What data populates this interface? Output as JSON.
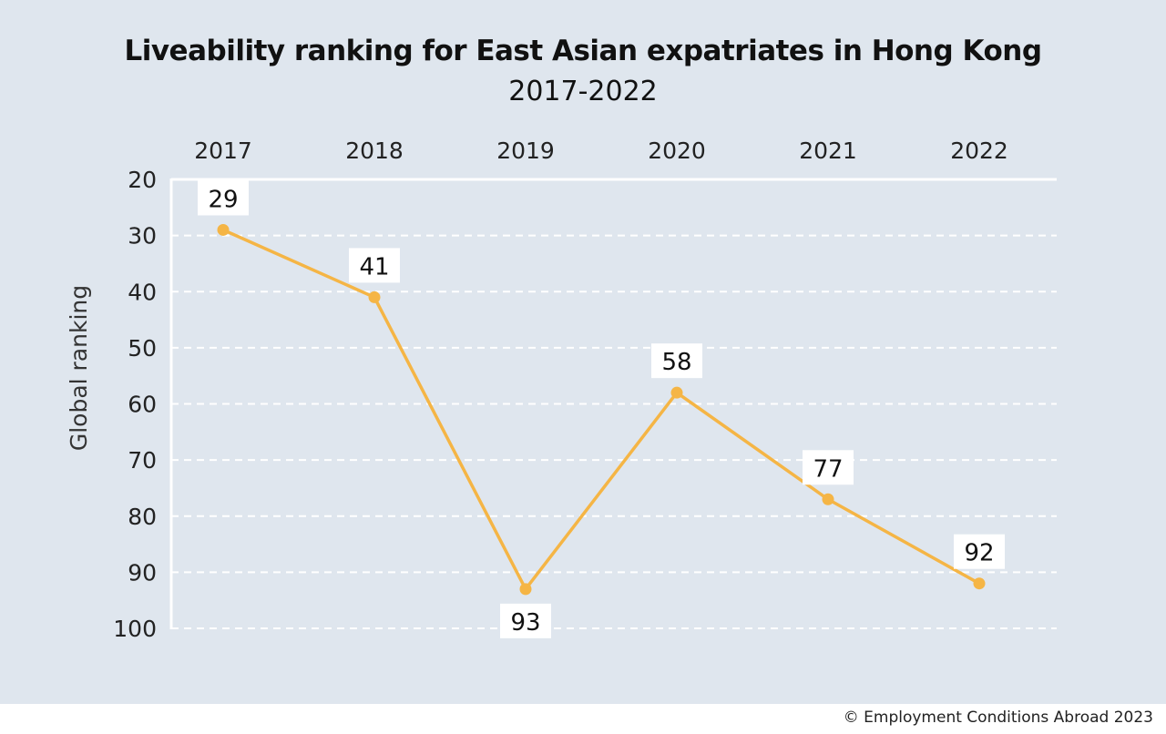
{
  "chart_data": {
    "type": "line",
    "title": "Liveability ranking for East Asian expatriates in Hong Kong",
    "subtitle": "2017-2022",
    "ylabel": "Global ranking",
    "x": [
      "2017",
      "2018",
      "2019",
      "2020",
      "2021",
      "2022"
    ],
    "y_ticks": [
      20,
      30,
      40,
      50,
      60,
      70,
      80,
      90,
      100
    ],
    "ylim": [
      20,
      100
    ],
    "y_inverted": true,
    "x_axis_position": "top",
    "grid": true,
    "series": [
      {
        "values": [
          29,
          41,
          93,
          58,
          77,
          92
        ],
        "labels": [
          "29",
          "41",
          "93",
          "58",
          "77",
          "92"
        ],
        "color": "#f5b545"
      }
    ]
  },
  "footer": {
    "copyright": "© Employment Conditions Abroad 2023"
  },
  "colors": {
    "background": "#dfe6ee",
    "line": "#f5b545",
    "grid": "#ffffff",
    "label_box": "#ffffff"
  }
}
